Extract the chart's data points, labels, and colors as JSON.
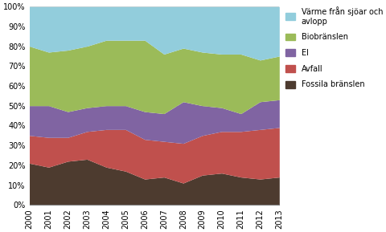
{
  "years": [
    2000,
    2001,
    2002,
    2003,
    2004,
    2005,
    2006,
    2007,
    2008,
    2009,
    2010,
    2011,
    2012,
    2013
  ],
  "fossila": [
    21,
    19,
    22,
    23,
    19,
    17,
    13,
    14,
    11,
    15,
    16,
    14,
    13,
    14
  ],
  "avfall": [
    14,
    15,
    12,
    14,
    19,
    21,
    20,
    18,
    20,
    20,
    21,
    23,
    25,
    25
  ],
  "el": [
    15,
    16,
    13,
    12,
    12,
    12,
    14,
    14,
    21,
    15,
    12,
    9,
    14,
    14
  ],
  "bio": [
    30,
    27,
    31,
    31,
    33,
    33,
    36,
    30,
    27,
    27,
    27,
    30,
    21,
    22
  ],
  "varme": [
    20,
    23,
    22,
    20,
    17,
    17,
    17,
    24,
    21,
    23,
    24,
    24,
    27,
    25
  ],
  "colors": {
    "fossila": "#4d3b2f",
    "avfall": "#c0504d",
    "el": "#8064a2",
    "bio": "#9bbb59",
    "varme": "#92cddc"
  },
  "labels": {
    "fossila": "Fossila bränslen",
    "avfall": "Avfall",
    "el": "El",
    "bio": "Biobränslen",
    "varme": "Värme från sjöar och\navlopp"
  },
  "ytick_labels": [
    "0%",
    "10%",
    "20%",
    "30%",
    "40%",
    "50%",
    "60%",
    "70%",
    "80%",
    "90%",
    "100%"
  ],
  "figsize": [
    4.81,
    2.89
  ],
  "dpi": 100,
  "bg_color": "#f2f2f2"
}
